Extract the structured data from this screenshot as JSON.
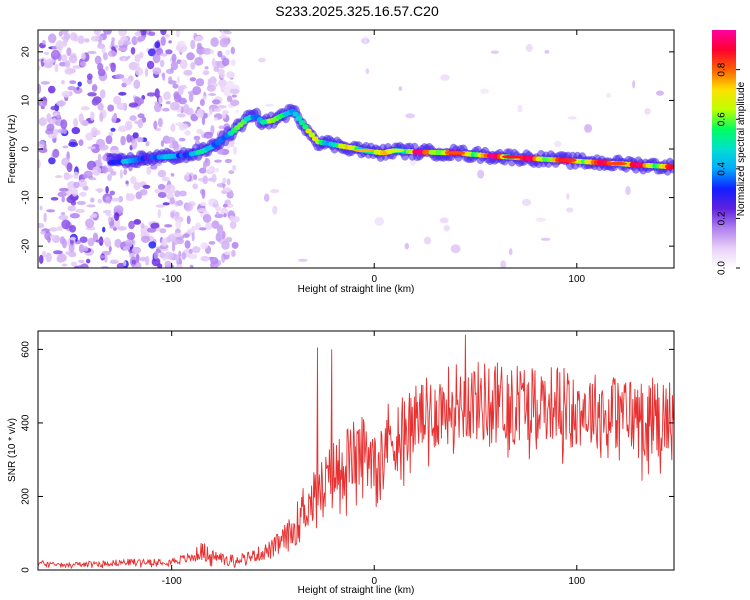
{
  "title": "S233.2025.325.16.57.C20",
  "chart_data": [
    {
      "type": "heatmap",
      "title": "S233.2025.325.16.57.C20",
      "xlabel": "Height of straight line (km)",
      "ylabel": "Frequency (Hz)",
      "xlim": [
        -166,
        148
      ],
      "ylim": [
        -24.5,
        24.5
      ],
      "xticks": [
        -100,
        0,
        100
      ],
      "yticks": [
        -20,
        -10,
        0,
        10,
        20
      ],
      "ridge": {
        "x": [
          -130,
          -122,
          -112,
          -100,
          -92,
          -85,
          -80,
          -75,
          -70,
          -66,
          -62,
          -58,
          -55,
          -50,
          -45,
          -40,
          -37,
          -33,
          -30,
          -28,
          -25,
          -20,
          -15,
          -10,
          -5,
          0,
          5,
          10,
          20,
          40,
          60,
          80,
          100,
          120,
          140,
          148
        ],
        "y": [
          -2.8,
          -2.5,
          -1.8,
          -1.5,
          -1.2,
          -0.5,
          0.5,
          2.0,
          3.5,
          5.0,
          6.5,
          6.6,
          5.5,
          5.9,
          7.0,
          7.8,
          6.2,
          4.0,
          2.5,
          1.5,
          1.3,
          0.9,
          0.5,
          0.2,
          -0.3,
          -0.6,
          -0.8,
          -0.3,
          -0.6,
          -0.8,
          -1.5,
          -2.0,
          -2.5,
          -3.0,
          -3.5,
          -3.7
        ]
      },
      "colorbar": {
        "label": "Normalized spectral amplitude",
        "ticks": [
          0.0,
          0.2,
          0.4,
          0.6,
          0.8
        ],
        "colors": [
          "#ffffff",
          "#e8d0f8",
          "#b080f0",
          "#6020e0",
          "#1020ff",
          "#00aaff",
          "#00e0d0",
          "#00ff60",
          "#c0ff00",
          "#ffe000",
          "#ff6000",
          "#ff0030",
          "#ff00a0"
        ]
      }
    },
    {
      "type": "line",
      "xlabel": "Height of straight line (km)",
      "ylabel": "SNR (10 * v/v)",
      "xlim": [
        -166,
        148
      ],
      "ylim": [
        0,
        650
      ],
      "xticks": [
        -100,
        0,
        100
      ],
      "yticks": [
        0,
        200,
        400,
        600
      ],
      "series": [
        {
          "name": "SNR",
          "color": "#e83030",
          "x": [
            -166,
            -150,
            -130,
            -110,
            -100,
            -90,
            -85,
            -80,
            -70,
            -60,
            -50,
            -40,
            -35,
            -30,
            -25,
            -20,
            -15,
            -10,
            -5,
            0,
            5,
            10,
            20,
            30,
            40,
            50,
            60,
            70,
            80,
            90,
            100,
            110,
            120,
            130,
            140,
            148
          ],
          "y": [
            20,
            15,
            20,
            25,
            25,
            35,
            55,
            40,
            30,
            40,
            60,
            110,
            175,
            200,
            230,
            270,
            300,
            320,
            330,
            340,
            360,
            380,
            420,
            440,
            470,
            470,
            470,
            470,
            470,
            465,
            450,
            445,
            440,
            430,
            430,
            420
          ],
          "spread": [
            10,
            10,
            12,
            15,
            15,
            20,
            40,
            25,
            20,
            25,
            40,
            70,
            100,
            110,
            130,
            140,
            140,
            140,
            150,
            150,
            150,
            150,
            140,
            150,
            160,
            160,
            160,
            160,
            150,
            150,
            150,
            150,
            150,
            160,
            160,
            160
          ]
        }
      ],
      "spikes": [
        {
          "x": -28,
          "y": 605
        },
        {
          "x": -21,
          "y": 600
        },
        {
          "x": 45,
          "y": 640
        }
      ]
    }
  ]
}
